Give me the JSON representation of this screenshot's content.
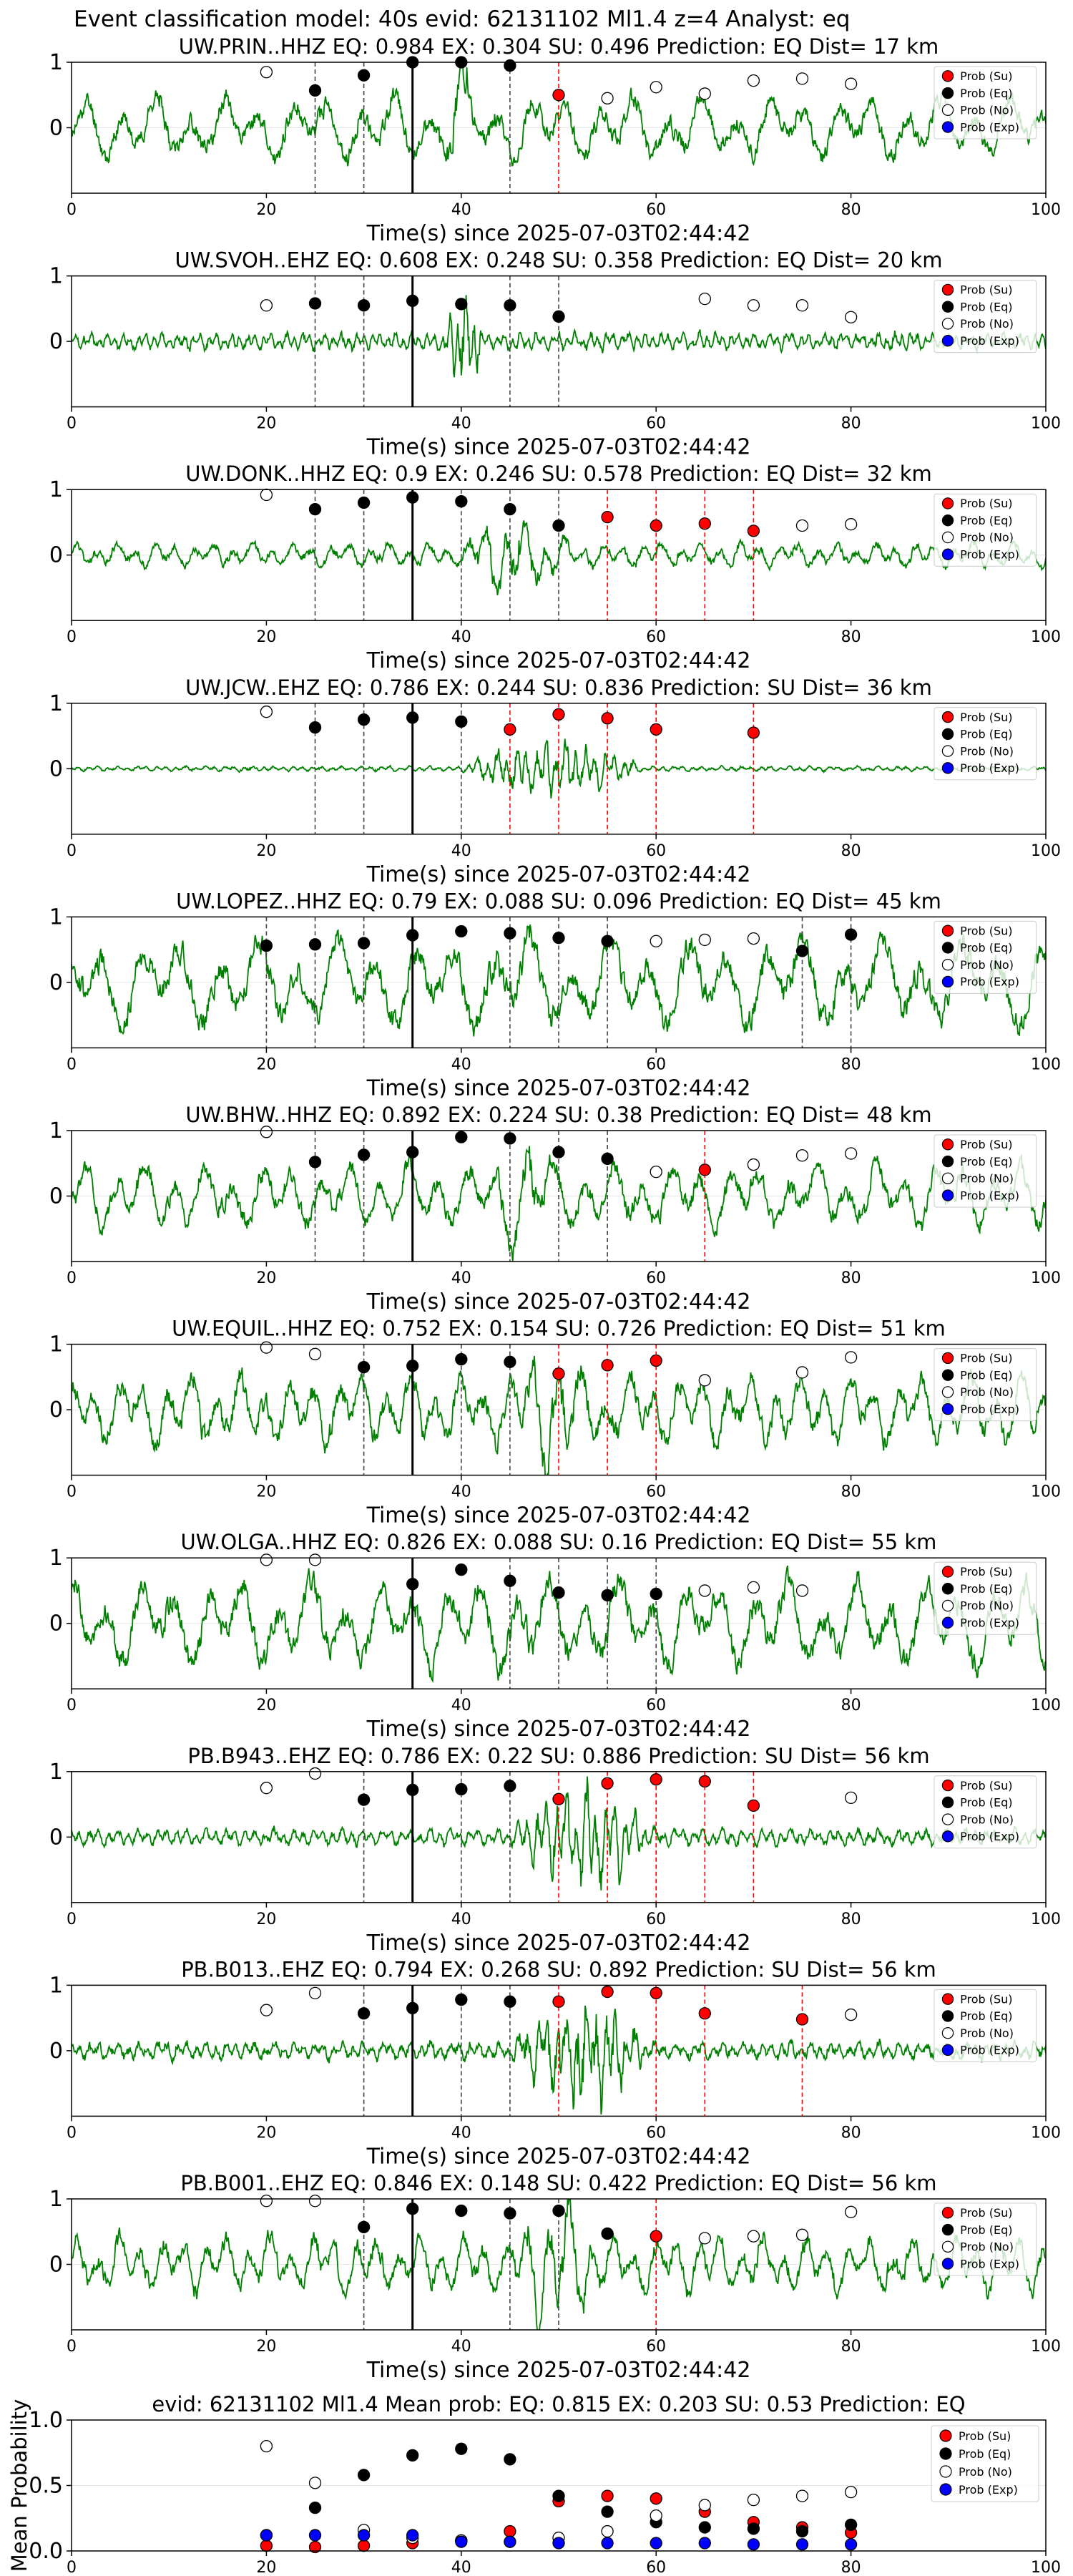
{
  "figure": {
    "title": "Event classification model: 40s evid: 62131102 Ml1.4 z=4 Analyst: eq"
  },
  "chart_data": {
    "type": "scatter",
    "xlim": [
      0,
      100
    ],
    "xticks": [
      0,
      20,
      40,
      60,
      80,
      100
    ],
    "legend": {
      "placement": "right",
      "entries": [
        "Prob (Su)",
        "Prob (Eq)",
        "Prob (No)",
        "Prob (Exp)"
      ]
    },
    "colors": {
      "waveform": "#008000",
      "su": "#ff0000",
      "eq": "#000000",
      "no": "#ffffff",
      "exp": "#0000ff",
      "su_line": "#ff0000",
      "eq_line": "#444444",
      "origin_line": "#000000"
    },
    "panels": [
      {
        "title": "UW.PRIN..HHZ   EQ: 0.984  EX: 0.304  SU: 0.496   Prediction: EQ    Dist= 17 km",
        "xlabel": "Time(s) since 2025-07-03T02:44:42",
        "ylim": [
          -1,
          1
        ],
        "yticks": [
          0,
          1
        ],
        "amp": 0.4,
        "noise": 0.05,
        "event_gain": 2.2,
        "event_start": 38,
        "event_end": 44,
        "period": 3.5,
        "seed": 11,
        "origin": 35,
        "eq_lines": [
          25,
          30,
          45
        ],
        "su_lines": [
          50
        ],
        "points": {
          "x": [
            20,
            25,
            30,
            35,
            40,
            45,
            50,
            55,
            60,
            65,
            70,
            75,
            80
          ],
          "class": [
            "no",
            "eq",
            "eq",
            "eq",
            "eq",
            "eq",
            "su",
            "no",
            "no",
            "no",
            "no",
            "no",
            "no"
          ],
          "y": [
            0.85,
            0.57,
            0.8,
            1.0,
            1.0,
            0.95,
            0.5,
            0.45,
            0.62,
            0.52,
            0.72,
            0.75,
            0.67
          ]
        }
      },
      {
        "title": "UW.SVOH..EHZ   EQ: 0.608  EX: 0.248  SU: 0.358   Prediction: EQ    Dist= 20 km",
        "xlabel": "Time(s) since 2025-07-03T02:44:42",
        "ylim": [
          -1,
          1
        ],
        "yticks": [
          0,
          1
        ],
        "amp": 0.1,
        "noise": 0.07,
        "event_gain": 6,
        "event_start": 38,
        "event_end": 45,
        "period": 0.8,
        "seed": 23,
        "origin": 35,
        "eq_lines": [
          25,
          30,
          45,
          50
        ],
        "su_lines": [],
        "points": {
          "x": [
            20,
            25,
            30,
            35,
            40,
            45,
            50,
            65,
            70,
            75,
            80
          ],
          "class": [
            "no",
            "eq",
            "eq",
            "eq",
            "eq",
            "eq",
            "eq",
            "no",
            "no",
            "no",
            "no"
          ],
          "y": [
            0.55,
            0.58,
            0.55,
            0.62,
            0.57,
            0.55,
            0.38,
            0.65,
            0.55,
            0.55,
            0.37
          ]
        }
      },
      {
        "title": "UW.DONK..HHZ   EQ: 0.9  EX: 0.246  SU: 0.578   Prediction: EQ    Dist= 32 km",
        "xlabel": "Time(s) since 2025-07-03T02:44:42",
        "ylim": [
          -1,
          1
        ],
        "yticks": [
          0,
          1
        ],
        "amp": 0.15,
        "noise": 0.05,
        "event_gain": 3.5,
        "event_start": 40,
        "event_end": 58,
        "period": 2.0,
        "seed": 31,
        "origin": 35,
        "eq_lines": [
          25,
          30,
          40,
          45,
          50
        ],
        "su_lines": [
          55,
          60,
          65,
          70
        ],
        "points": {
          "x": [
            20,
            25,
            30,
            35,
            40,
            45,
            50,
            55,
            60,
            65,
            70,
            75,
            80
          ],
          "class": [
            "no",
            "eq",
            "eq",
            "eq",
            "eq",
            "eq",
            "eq",
            "su",
            "su",
            "su",
            "su",
            "no",
            "no"
          ],
          "y": [
            0.92,
            0.7,
            0.8,
            0.88,
            0.82,
            0.7,
            0.45,
            0.58,
            0.45,
            0.48,
            0.37,
            0.45,
            0.47
          ]
        }
      },
      {
        "title": "UW.JCW..EHZ   EQ: 0.786  EX: 0.244  SU: 0.836   Prediction: SU    Dist= 36 km",
        "xlabel": "Time(s) since 2025-07-03T02:44:42",
        "ylim": [
          -1,
          1
        ],
        "yticks": [
          0,
          1
        ],
        "amp": 0.03,
        "noise": 0.02,
        "event_gain": 12,
        "event_start": 40,
        "event_end": 70,
        "period": 1.0,
        "seed": 41,
        "origin": 35,
        "eq_lines": [
          25,
          30,
          40
        ],
        "su_lines": [
          45,
          50,
          55,
          60,
          70
        ],
        "points": {
          "x": [
            20,
            25,
            30,
            35,
            40,
            45,
            50,
            55,
            60,
            70
          ],
          "class": [
            "no",
            "eq",
            "eq",
            "eq",
            "eq",
            "su",
            "su",
            "su",
            "su",
            "su"
          ],
          "y": [
            0.87,
            0.63,
            0.75,
            0.78,
            0.72,
            0.6,
            0.83,
            0.77,
            0.6,
            0.55
          ]
        }
      },
      {
        "title": "UW.LOPEZ..HHZ   EQ: 0.79  EX: 0.088  SU: 0.096   Prediction: EQ    Dist= 45 km",
        "xlabel": "Time(s) since 2025-07-03T02:44:42",
        "ylim": [
          -1,
          1
        ],
        "yticks": [
          0,
          1
        ],
        "amp": 0.55,
        "noise": 0.03,
        "event_gain": 1.3,
        "event_start": 40,
        "event_end": 56,
        "period": 4.0,
        "seed": 53,
        "origin": 35,
        "eq_lines": [
          20,
          25,
          30,
          45,
          50,
          55,
          75,
          80
        ],
        "su_lines": [],
        "points": {
          "x": [
            20,
            25,
            30,
            35,
            40,
            45,
            50,
            55,
            60,
            65,
            70,
            75,
            80
          ],
          "class": [
            "eq",
            "eq",
            "eq",
            "eq",
            "eq",
            "eq",
            "eq",
            "eq",
            "no",
            "no",
            "no",
            "eq",
            "eq"
          ],
          "y": [
            0.56,
            0.58,
            0.6,
            0.72,
            0.78,
            0.75,
            0.68,
            0.63,
            0.63,
            0.65,
            0.67,
            0.48,
            0.73
          ]
        }
      },
      {
        "title": "UW.BHW..HHZ   EQ: 0.892  EX: 0.224  SU: 0.38   Prediction: EQ    Dist= 48 km",
        "xlabel": "Time(s) since 2025-07-03T02:44:42",
        "ylim": [
          -1,
          1
        ],
        "yticks": [
          0,
          1
        ],
        "amp": 0.4,
        "noise": 0.04,
        "event_gain": 2.0,
        "event_start": 43,
        "event_end": 55,
        "period": 3.0,
        "seed": 61,
        "origin": 35,
        "eq_lines": [
          25,
          30,
          45,
          50,
          55
        ],
        "su_lines": [
          65
        ],
        "points": {
          "x": [
            20,
            25,
            30,
            35,
            40,
            45,
            50,
            55,
            60,
            65,
            70,
            75,
            80
          ],
          "class": [
            "no",
            "eq",
            "eq",
            "eq",
            "eq",
            "eq",
            "eq",
            "eq",
            "no",
            "su",
            "no",
            "no",
            "no"
          ],
          "y": [
            0.98,
            0.52,
            0.63,
            0.67,
            0.9,
            0.88,
            0.67,
            0.57,
            0.37,
            0.4,
            0.48,
            0.62,
            0.65
          ]
        }
      },
      {
        "title": "UW.EQUIL..HHZ   EQ: 0.752  EX: 0.154  SU: 0.726   Prediction: EQ    Dist= 51 km",
        "xlabel": "Time(s) since 2025-07-03T02:44:42",
        "ylim": [
          -1,
          1
        ],
        "yticks": [
          0,
          1
        ],
        "amp": 0.45,
        "noise": 0.08,
        "event_gain": 1.8,
        "event_start": 45,
        "event_end": 58,
        "period": 2.5,
        "seed": 71,
        "origin": 35,
        "eq_lines": [
          30,
          40,
          45
        ],
        "su_lines": [
          50,
          55,
          60
        ],
        "points": {
          "x": [
            20,
            25,
            30,
            35,
            40,
            45,
            50,
            55,
            60,
            65,
            75,
            80
          ],
          "class": [
            "no",
            "no",
            "eq",
            "eq",
            "eq",
            "eq",
            "su",
            "su",
            "su",
            "no",
            "no",
            "no"
          ],
          "y": [
            0.95,
            0.85,
            0.65,
            0.67,
            0.77,
            0.73,
            0.55,
            0.68,
            0.75,
            0.45,
            0.57,
            0.8
          ]
        }
      },
      {
        "title": "UW.OLGA..HHZ   EQ: 0.826  EX: 0.088  SU: 0.16   Prediction: EQ    Dist= 55 km",
        "xlabel": "Time(s) since 2025-07-03T02:44:42",
        "ylim": [
          -1,
          1
        ],
        "yticks": [
          0,
          1
        ],
        "amp": 0.55,
        "noise": 0.02,
        "event_gain": 1.2,
        "event_start": 40,
        "event_end": 58,
        "period": 3.5,
        "seed": 83,
        "origin": 35,
        "eq_lines": [
          45,
          50,
          55,
          60
        ],
        "su_lines": [],
        "points": {
          "x": [
            20,
            25,
            35,
            40,
            45,
            50,
            55,
            60,
            65,
            70,
            75
          ],
          "class": [
            "no",
            "no",
            "eq",
            "eq",
            "eq",
            "eq",
            "eq",
            "eq",
            "no",
            "no",
            "no"
          ],
          "y": [
            0.97,
            0.97,
            0.6,
            0.82,
            0.65,
            0.47,
            0.43,
            0.45,
            0.5,
            0.55,
            0.5
          ]
        }
      },
      {
        "title": "PB.B943..EHZ   EQ: 0.786  EX: 0.22  SU: 0.886   Prediction: SU    Dist= 56 km",
        "xlabel": "Time(s) since 2025-07-03T02:44:42",
        "ylim": [
          -1,
          1
        ],
        "yticks": [
          0,
          1
        ],
        "amp": 0.1,
        "noise": 0.07,
        "event_gain": 6,
        "event_start": 45,
        "event_end": 68,
        "period": 1.0,
        "seed": 97,
        "origin": 35,
        "eq_lines": [
          30,
          40,
          45
        ],
        "su_lines": [
          50,
          55,
          60,
          65,
          70
        ],
        "points": {
          "x": [
            20,
            25,
            30,
            35,
            40,
            45,
            50,
            55,
            60,
            65,
            70,
            80
          ],
          "class": [
            "no",
            "no",
            "eq",
            "eq",
            "eq",
            "eq",
            "su",
            "su",
            "su",
            "su",
            "su",
            "no"
          ],
          "y": [
            0.75,
            0.97,
            0.57,
            0.72,
            0.73,
            0.78,
            0.58,
            0.82,
            0.88,
            0.85,
            0.48,
            0.6
          ]
        }
      },
      {
        "title": "PB.B013..EHZ   EQ: 0.794  EX: 0.268  SU: 0.892   Prediction: SU    Dist= 56 km",
        "xlabel": "Time(s) since 2025-07-03T02:44:42",
        "ylim": [
          -1,
          1
        ],
        "yticks": [
          0,
          1
        ],
        "amp": 0.1,
        "noise": 0.09,
        "event_gain": 6,
        "event_start": 45,
        "event_end": 68,
        "period": 1.0,
        "seed": 103,
        "origin": 35,
        "eq_lines": [
          30,
          40,
          45
        ],
        "su_lines": [
          50,
          60,
          65,
          75
        ],
        "points": {
          "x": [
            20,
            25,
            30,
            35,
            40,
            45,
            50,
            55,
            60,
            65,
            75,
            80
          ],
          "class": [
            "no",
            "no",
            "eq",
            "eq",
            "eq",
            "eq",
            "su",
            "su",
            "su",
            "su",
            "su",
            "no"
          ],
          "y": [
            0.62,
            0.88,
            0.57,
            0.65,
            0.78,
            0.75,
            0.75,
            0.9,
            0.88,
            0.57,
            0.48,
            0.55
          ]
        }
      },
      {
        "title": "PB.B001..EHZ   EQ: 0.846  EX: 0.148  SU: 0.422   Prediction: EQ    Dist= 56 km",
        "xlabel": "Time(s) since 2025-07-03T02:44:42",
        "ylim": [
          -1,
          1
        ],
        "yticks": [
          0,
          1
        ],
        "amp": 0.35,
        "noise": 0.08,
        "event_gain": 2.3,
        "event_start": 45,
        "event_end": 60,
        "period": 2.2,
        "seed": 113,
        "origin": 35,
        "eq_lines": [
          30,
          45,
          50
        ],
        "su_lines": [
          60
        ],
        "points": {
          "x": [
            20,
            25,
            30,
            35,
            40,
            45,
            50,
            55,
            60,
            65,
            70,
            75,
            80
          ],
          "class": [
            "no",
            "no",
            "eq",
            "eq",
            "eq",
            "eq",
            "eq",
            "eq",
            "su",
            "no",
            "no",
            "no",
            "no"
          ],
          "y": [
            0.97,
            0.97,
            0.57,
            0.85,
            0.82,
            0.78,
            0.82,
            0.47,
            0.43,
            0.4,
            0.43,
            0.45,
            0.8
          ]
        }
      }
    ],
    "summary": {
      "title": "evid: 62131102  Ml1.4   Mean prob:   EQ: 0.815  EX: 0.203  SU: 0.53   Prediction: EQ",
      "ylabel": "Mean Probability",
      "ylim": [
        0,
        1
      ],
      "yticks": [
        0,
        0.5,
        1
      ],
      "ytick_labels": [
        "0.0",
        "0.5",
        "1.0"
      ],
      "x": [
        20,
        25,
        30,
        35,
        40,
        45,
        50,
        55,
        60,
        65,
        70,
        75,
        80
      ],
      "series": [
        {
          "name": "Prob (Su)",
          "class": "su",
          "values": [
            0.04,
            0.03,
            0.04,
            0.06,
            0.08,
            0.15,
            0.38,
            0.42,
            0.4,
            0.3,
            0.22,
            0.18,
            0.14
          ]
        },
        {
          "name": "Prob (Eq)",
          "class": "eq",
          "values": [
            0.12,
            0.33,
            0.58,
            0.73,
            0.78,
            0.7,
            0.42,
            0.3,
            0.22,
            0.18,
            0.17,
            0.15,
            0.2
          ]
        },
        {
          "name": "Prob (No)",
          "class": "no",
          "values": [
            0.8,
            0.52,
            0.16,
            0.1,
            0.08,
            0.07,
            0.1,
            0.15,
            0.27,
            0.35,
            0.39,
            0.42,
            0.45
          ]
        },
        {
          "name": "Prob (Exp)",
          "class": "exp",
          "values": [
            0.12,
            0.12,
            0.12,
            0.12,
            0.07,
            0.07,
            0.06,
            0.06,
            0.06,
            0.06,
            0.05,
            0.05,
            0.05
          ]
        }
      ]
    }
  }
}
